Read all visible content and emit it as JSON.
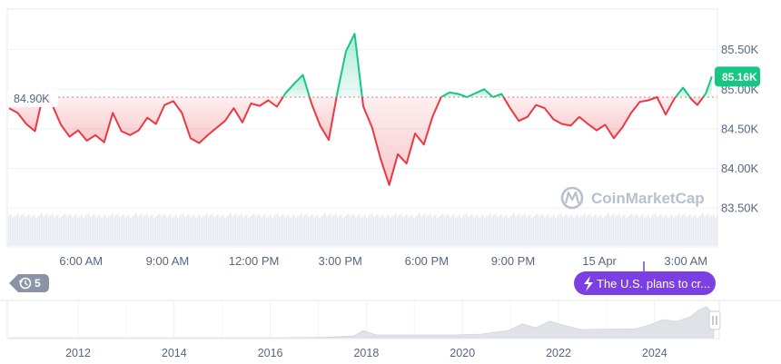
{
  "chart_data": {
    "type": "line",
    "y_axis_position": "right",
    "ylim": [
      83200,
      85800
    ],
    "y_ticks": [
      "85.50K",
      "85.00K",
      "84.50K",
      "84.00K",
      "83.50K"
    ],
    "y_tick_values": [
      85500,
      85000,
      84500,
      84000,
      83500
    ],
    "x_time_range": [
      "03:30",
      "03:55+1"
    ],
    "x_ticks": [
      "6:00 AM",
      "9:00 AM",
      "12:00 PM",
      "3:00 PM",
      "6:00 PM",
      "9:00 PM",
      "15 Apr",
      "3:00 AM"
    ],
    "x_tick_hours": [
      6,
      9,
      12,
      15,
      18,
      21,
      24,
      27
    ],
    "reference": {
      "label": "84.90K",
      "value": 84900
    },
    "current": {
      "label": "85.16K",
      "value": 85160
    },
    "colors": {
      "above": "#16c784",
      "below": "#ea3943",
      "reference_line": "#ea3943",
      "current_badge": "#16c784",
      "grid": "#eff2f5",
      "axis_text": "#58667e"
    },
    "series": [
      {
        "x": [
          3.5,
          3.8,
          4.1,
          4.4,
          4.7,
          5.0,
          5.3,
          5.6,
          5.9,
          6.2,
          6.5,
          6.8,
          7.1,
          7.4,
          7.7,
          8.0,
          8.3,
          8.6,
          8.9,
          9.2,
          9.5,
          9.8,
          10.1,
          10.4,
          10.7,
          11.0,
          11.3,
          11.6,
          11.9,
          12.2,
          12.5,
          12.8,
          13.1,
          13.4,
          13.7,
          14.0,
          14.3,
          14.6,
          14.9,
          15.2,
          15.5,
          15.8,
          16.1,
          16.4,
          16.7,
          17.0,
          17.3,
          17.6,
          17.9,
          18.2,
          18.5,
          18.8,
          19.1,
          19.4,
          19.7,
          20.0,
          20.3,
          20.6,
          20.9,
          21.2,
          21.5,
          21.8,
          22.1,
          22.4,
          22.7,
          23.0,
          23.3,
          23.6,
          23.9,
          24.2,
          24.5,
          24.8,
          25.1,
          25.4,
          25.7,
          26.0,
          26.3,
          26.6,
          26.9,
          27.2,
          27.4,
          27.7,
          27.9
        ],
        "y": [
          84760,
          84700,
          84560,
          84470,
          84960,
          84800,
          84550,
          84400,
          84480,
          84350,
          84420,
          84330,
          84700,
          84470,
          84420,
          84480,
          84640,
          84560,
          84800,
          84850,
          84700,
          84380,
          84320,
          84420,
          84510,
          84600,
          84760,
          84580,
          84820,
          84790,
          84860,
          84780,
          84950,
          85070,
          85180,
          84820,
          84540,
          84360,
          84960,
          85480,
          85700,
          84780,
          84520,
          84120,
          83790,
          84180,
          84060,
          84440,
          84300,
          84650,
          84900,
          84960,
          84940,
          84900,
          84950,
          85000,
          84900,
          84940,
          84760,
          84600,
          84650,
          84800,
          84760,
          84620,
          84560,
          84540,
          84650,
          84560,
          84480,
          84550,
          84380,
          84520,
          84700,
          84840,
          84860,
          84900,
          84680,
          84880,
          85020,
          84870,
          84800,
          84950,
          85160
        ]
      }
    ],
    "volume_panel": true,
    "watermark": "CoinMarketCap",
    "navigator": {
      "x_ticks": [
        "2012",
        "2014",
        "2016",
        "2018",
        "2020",
        "2022",
        "2024"
      ]
    }
  },
  "history_badge": {
    "icon": "history-icon",
    "count": "5"
  },
  "event_marker": {
    "icon": "lightning-icon",
    "text": "The U.S. plans to cr..."
  }
}
